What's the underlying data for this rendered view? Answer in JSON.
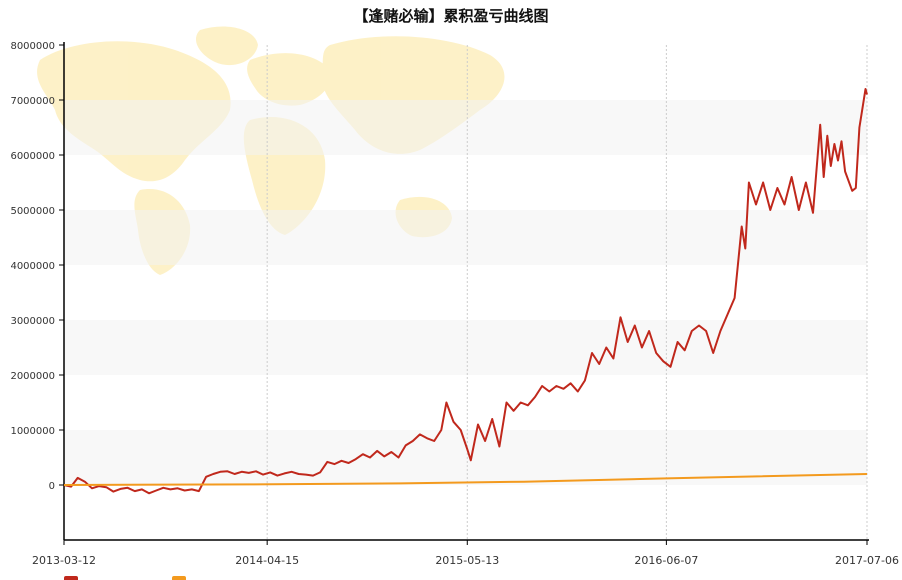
{
  "chart_data": {
    "type": "line",
    "title": "【逢赌必输】累积盈亏曲线图",
    "xlabel": "",
    "ylabel": "",
    "x_ticks": [
      "2013-03-12",
      "2014-04-15",
      "2015-05-13",
      "2016-06-07",
      "2017-07-06"
    ],
    "y_ticks": [
      0,
      1000000,
      2000000,
      3000000,
      4000000,
      5000000,
      6000000,
      7000000,
      8000000
    ],
    "ylim": [
      -1000000,
      8000000
    ],
    "xlim": [
      "2013-03-12",
      "2017-07-06"
    ],
    "grid": {
      "vertical": true,
      "horizontal_bands": true
    },
    "background": "world-map",
    "series": [
      {
        "color": "#c0281c",
        "points": [
          [
            "2013-03-12",
            0
          ],
          [
            "2013-03-26",
            -30000
          ],
          [
            "2013-04-08",
            130000
          ],
          [
            "2013-04-22",
            60000
          ],
          [
            "2013-05-06",
            -60000
          ],
          [
            "2013-05-20",
            -20000
          ],
          [
            "2013-06-03",
            -40000
          ],
          [
            "2013-06-17",
            -120000
          ],
          [
            "2013-07-01",
            -70000
          ],
          [
            "2013-07-15",
            -50000
          ],
          [
            "2013-07-29",
            -110000
          ],
          [
            "2013-08-12",
            -80000
          ],
          [
            "2013-08-26",
            -150000
          ],
          [
            "2013-09-09",
            -100000
          ],
          [
            "2013-09-23",
            -50000
          ],
          [
            "2013-10-07",
            -80000
          ],
          [
            "2013-10-21",
            -60000
          ],
          [
            "2013-11-04",
            -100000
          ],
          [
            "2013-11-18",
            -80000
          ],
          [
            "2013-12-02",
            -110000
          ],
          [
            "2013-12-16",
            150000
          ],
          [
            "2013-12-30",
            200000
          ],
          [
            "2014-01-13",
            240000
          ],
          [
            "2014-01-27",
            250000
          ],
          [
            "2014-02-10",
            200000
          ],
          [
            "2014-02-24",
            240000
          ],
          [
            "2014-03-10",
            220000
          ],
          [
            "2014-03-24",
            250000
          ],
          [
            "2014-04-07",
            190000
          ],
          [
            "2014-04-21",
            230000
          ],
          [
            "2014-05-05",
            170000
          ],
          [
            "2014-05-19",
            210000
          ],
          [
            "2014-06-02",
            240000
          ],
          [
            "2014-06-16",
            200000
          ],
          [
            "2014-06-30",
            190000
          ],
          [
            "2014-07-14",
            170000
          ],
          [
            "2014-07-28",
            230000
          ],
          [
            "2014-08-11",
            420000
          ],
          [
            "2014-08-25",
            380000
          ],
          [
            "2014-09-08",
            440000
          ],
          [
            "2014-09-22",
            400000
          ],
          [
            "2014-10-06",
            470000
          ],
          [
            "2014-10-20",
            560000
          ],
          [
            "2014-11-03",
            500000
          ],
          [
            "2014-11-17",
            620000
          ],
          [
            "2014-12-01",
            520000
          ],
          [
            "2014-12-15",
            600000
          ],
          [
            "2014-12-29",
            500000
          ],
          [
            "2015-01-12",
            720000
          ],
          [
            "2015-01-26",
            800000
          ],
          [
            "2015-02-09",
            920000
          ],
          [
            "2015-02-23",
            850000
          ],
          [
            "2015-03-09",
            800000
          ],
          [
            "2015-03-23",
            1000000
          ],
          [
            "2015-04-02",
            1500000
          ],
          [
            "2015-04-16",
            1150000
          ],
          [
            "2015-04-30",
            1000000
          ],
          [
            "2015-05-13",
            650000
          ],
          [
            "2015-05-20",
            450000
          ],
          [
            "2015-06-03",
            1100000
          ],
          [
            "2015-06-17",
            800000
          ],
          [
            "2015-07-01",
            1200000
          ],
          [
            "2015-07-15",
            700000
          ],
          [
            "2015-07-29",
            1500000
          ],
          [
            "2015-08-12",
            1350000
          ],
          [
            "2015-08-26",
            1500000
          ],
          [
            "2015-09-09",
            1450000
          ],
          [
            "2015-09-23",
            1600000
          ],
          [
            "2015-10-07",
            1800000
          ],
          [
            "2015-10-21",
            1700000
          ],
          [
            "2015-11-04",
            1800000
          ],
          [
            "2015-11-18",
            1750000
          ],
          [
            "2015-12-02",
            1850000
          ],
          [
            "2015-12-16",
            1700000
          ],
          [
            "2015-12-30",
            1900000
          ],
          [
            "2016-01-13",
            2400000
          ],
          [
            "2016-01-27",
            2200000
          ],
          [
            "2016-02-10",
            2500000
          ],
          [
            "2016-02-24",
            2300000
          ],
          [
            "2016-03-09",
            3050000
          ],
          [
            "2016-03-23",
            2600000
          ],
          [
            "2016-04-06",
            2900000
          ],
          [
            "2016-04-20",
            2500000
          ],
          [
            "2016-05-04",
            2800000
          ],
          [
            "2016-05-18",
            2400000
          ],
          [
            "2016-06-01",
            2250000
          ],
          [
            "2016-06-15",
            2150000
          ],
          [
            "2016-06-29",
            2600000
          ],
          [
            "2016-07-13",
            2450000
          ],
          [
            "2016-07-27",
            2800000
          ],
          [
            "2016-08-10",
            2900000
          ],
          [
            "2016-08-24",
            2800000
          ],
          [
            "2016-09-07",
            2400000
          ],
          [
            "2016-09-21",
            2800000
          ],
          [
            "2016-10-05",
            3100000
          ],
          [
            "2016-10-19",
            3400000
          ],
          [
            "2016-11-02",
            4700000
          ],
          [
            "2016-11-09",
            4300000
          ],
          [
            "2016-11-16",
            5500000
          ],
          [
            "2016-11-30",
            5100000
          ],
          [
            "2016-12-14",
            5500000
          ],
          [
            "2016-12-28",
            5000000
          ],
          [
            "2017-01-11",
            5400000
          ],
          [
            "2017-01-25",
            5100000
          ],
          [
            "2017-02-08",
            5600000
          ],
          [
            "2017-02-22",
            5000000
          ],
          [
            "2017-03-08",
            5500000
          ],
          [
            "2017-03-22",
            4950000
          ],
          [
            "2017-04-05",
            6550000
          ],
          [
            "2017-04-12",
            5600000
          ],
          [
            "2017-04-19",
            6350000
          ],
          [
            "2017-04-26",
            5800000
          ],
          [
            "2017-05-03",
            6200000
          ],
          [
            "2017-05-10",
            5900000
          ],
          [
            "2017-05-17",
            6250000
          ],
          [
            "2017-05-24",
            5700000
          ],
          [
            "2017-06-07",
            5350000
          ],
          [
            "2017-06-14",
            5400000
          ],
          [
            "2017-06-21",
            6500000
          ],
          [
            "2017-06-28",
            6900000
          ],
          [
            "2017-07-03",
            7200000
          ],
          [
            "2017-07-06",
            7100000
          ]
        ]
      },
      {
        "color": "#f39a1e",
        "points": [
          [
            "2013-03-12",
            0
          ],
          [
            "2014-03-12",
            10000
          ],
          [
            "2015-01-01",
            30000
          ],
          [
            "2015-09-01",
            60000
          ],
          [
            "2016-06-07",
            120000
          ],
          [
            "2017-07-06",
            200000
          ]
        ]
      }
    ]
  }
}
